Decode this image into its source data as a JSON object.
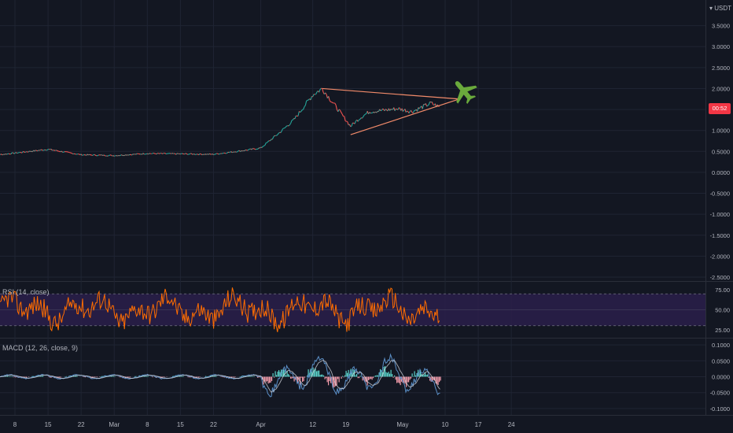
{
  "header": {
    "currency": "USDT"
  },
  "price_tag": {
    "label": "00:52",
    "color": "#f23645"
  },
  "colors": {
    "background": "#131722",
    "grid": "#1f2433",
    "up_candle": "#26a69a",
    "down_candle": "#ef5350",
    "trendline": "#f28b6a",
    "rsi_line": "#ff6d00",
    "rsi_band": "#2a1f4a",
    "macd_line": "#5b8fc7",
    "signal_line": "#d1d4dc",
    "hist_pos": "#5ad1c9",
    "hist_neg": "#ef9aa8",
    "airplane": "#6aaa3c"
  },
  "panes": {
    "rsi": {
      "label": "RSI (14, close)"
    },
    "macd": {
      "label": "MACD (12, 26, close, 9)"
    }
  },
  "annotations": {
    "airplane_icon": "airplane-icon",
    "triangle": "symmetrical triangle trendlines"
  },
  "chart_data": [
    {
      "type": "line",
      "name": "price",
      "x": [
        "Feb 3",
        "Feb 8",
        "Feb 15",
        "Feb 22",
        "Mar 1",
        "Mar 8",
        "Mar 15",
        "Mar 22",
        "Mar 29",
        "Apr 1",
        "Apr 5",
        "Apr 8",
        "Apr 12",
        "Apr 14",
        "Apr 16",
        "Apr 18",
        "Apr 20",
        "Apr 22",
        "Apr 24",
        "Apr 27",
        "Apr 30",
        "May 3",
        "May 5",
        "May 7",
        "May 9"
      ],
      "y": [
        0.4,
        0.46,
        0.55,
        0.42,
        0.4,
        0.45,
        0.44,
        0.43,
        0.53,
        0.58,
        0.95,
        1.25,
        1.85,
        2.0,
        1.7,
        1.4,
        1.1,
        1.3,
        1.45,
        1.48,
        1.52,
        1.45,
        1.55,
        1.65,
        1.55
      ],
      "ylim": [
        -2.5,
        4.0
      ],
      "yticks": [
        "3.5000",
        "3.0000",
        "2.5000",
        "2.0000",
        "1.5000",
        "1.0000",
        "0.5000",
        "0.0000",
        "-0.5000",
        "-1.0000",
        "-1.5000",
        "-2.0000",
        "-2.5000"
      ],
      "ytick_values": [
        3.5,
        3.0,
        2.5,
        2.0,
        1.5,
        1.0,
        0.5,
        0.0,
        -0.5,
        -1.0,
        -1.5,
        -2.0,
        -2.5
      ],
      "xticks": [
        "8",
        "15",
        "22",
        "Mar",
        "8",
        "15",
        "22",
        "Apr",
        "12",
        "19",
        "May",
        "10",
        "17",
        "24"
      ],
      "trendlines": [
        {
          "from": [
            "Apr 14",
            2.0
          ],
          "to": [
            "May 13",
            1.75
          ]
        },
        {
          "from": [
            "Apr 20",
            0.9
          ],
          "to": [
            "May 13",
            1.75
          ]
        }
      ]
    },
    {
      "type": "line",
      "name": "RSI (14, close)",
      "ylim": [
        15,
        85
      ],
      "yticks": [
        "75.00",
        "50.00",
        "25.00"
      ],
      "ytick_values": [
        75,
        50,
        25
      ],
      "bands": [
        70,
        30
      ]
    },
    {
      "type": "line",
      "name": "MACD (12, 26, close, 9)",
      "ylim": [
        -0.12,
        0.12
      ],
      "yticks": [
        "0.1000",
        "0.0500",
        "0.0000",
        "-0.0500",
        "-0.1000"
      ],
      "ytick_values": [
        0.1,
        0.05,
        0.0,
        -0.05,
        -0.1
      ]
    }
  ]
}
